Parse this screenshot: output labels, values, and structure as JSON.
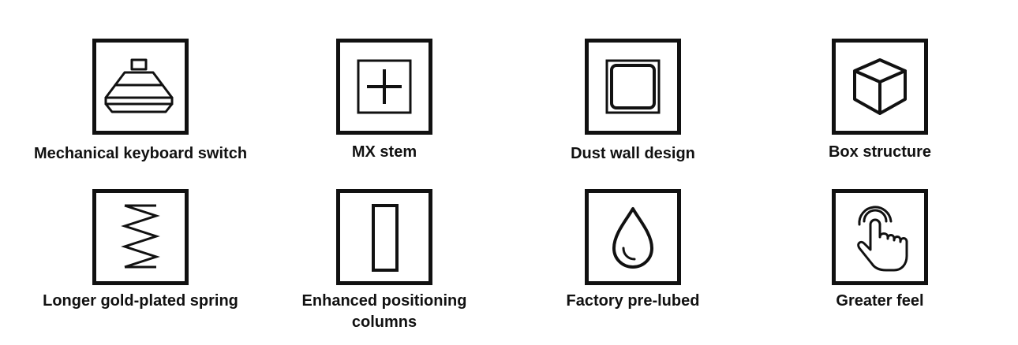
{
  "features": {
    "items": [
      {
        "label": "Mechanical keyboard switch",
        "icon": "switch-icon"
      },
      {
        "label": "MX stem",
        "icon": "cross-stem-icon"
      },
      {
        "label": "Dust wall design",
        "icon": "dust-wall-icon"
      },
      {
        "label": "Box structure",
        "icon": "cube-icon"
      },
      {
        "label": "Longer gold-plated spring",
        "icon": "spring-icon"
      },
      {
        "label": "Enhanced positioning\ncolumns",
        "icon": "column-icon"
      },
      {
        "label": "Factory pre-lubed",
        "icon": "droplet-icon"
      },
      {
        "label": "Greater feel",
        "icon": "finger-touch-icon"
      }
    ]
  },
  "colors": {
    "stroke": "#111111",
    "background": "#ffffff"
  }
}
